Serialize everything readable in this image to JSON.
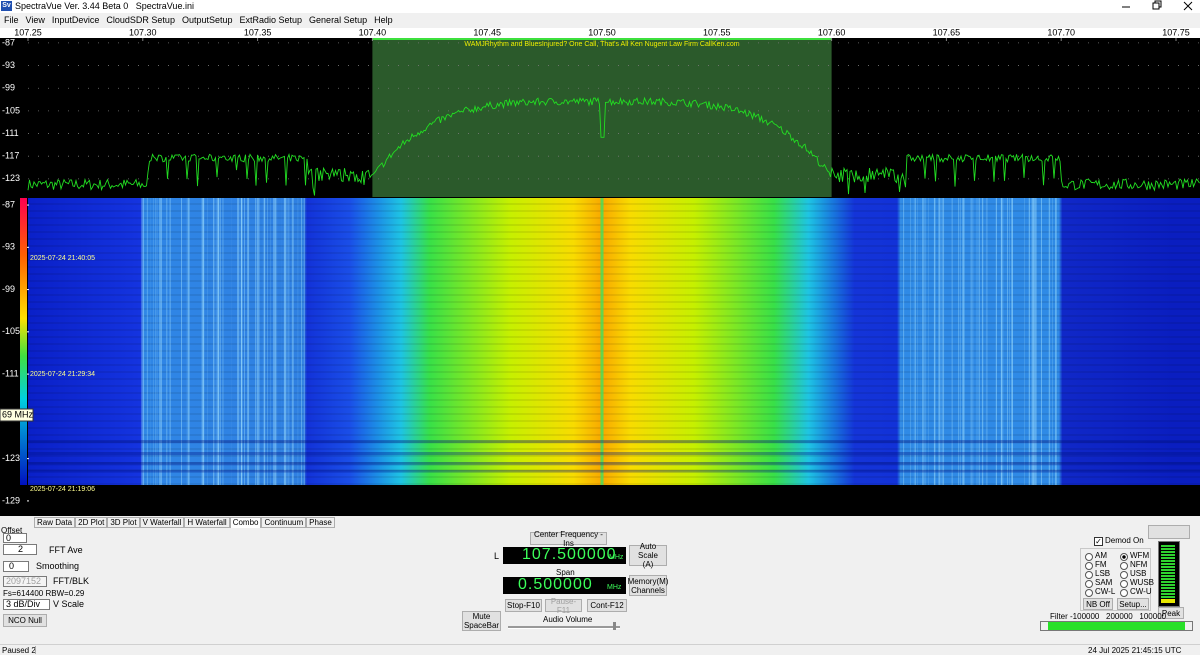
{
  "window": {
    "title": "SpectraVue Ver. 3.44 Beta 0   SpectraVue.ini",
    "icon": "Sv"
  },
  "menu": [
    "File",
    "View",
    "InputDevice",
    "CloudSDR Setup",
    "OutputSetup",
    "ExtRadio Setup",
    "General Setup",
    "Help"
  ],
  "chart_data": [
    {
      "type": "line",
      "color": "#22dd22",
      "xlim": [
        107.25,
        107.75
      ],
      "xticks": [
        107.25,
        {
          "value": 107.3,
          "label": "107.30"
        },
        107.35,
        {
          "value": 107.4,
          "label": "107.40"
        },
        107.45,
        {
          "value": 107.5,
          "label": "107.50"
        },
        107.55,
        {
          "value": 107.6,
          "label": "107.60"
        },
        107.65,
        {
          "value": 107.7,
          "label": "107.70"
        },
        107.75
      ],
      "ylim": [
        -127.8,
        -85.7
      ],
      "yticks": [
        -87,
        -93,
        -99,
        -105,
        -111,
        -117,
        -123
      ],
      "grid": true,
      "highlight": [
        107.4,
        107.6
      ],
      "banner": "WAMJRhythm and BluesInjured? One Call, That's All Ken Nugent Law Firm CallKen.com"
    },
    {
      "type": "heatmap",
      "ylim": [
        -131,
        -86
      ],
      "yticks": [
        -87,
        -93,
        -99,
        -105,
        -111,
        -117,
        -123,
        -129
      ],
      "timestamps": [
        "2025-07-24 21:40:05",
        "2025-07-24 21:29:34",
        "2025-07-24 21:19:06"
      ],
      "marker": "69 MHz"
    }
  ],
  "tabs": {
    "items": [
      "Raw Data",
      "2D Plot",
      "3D Plot",
      "V Waterfall",
      "H Waterfall",
      "Combo",
      "Continuum",
      "Phase"
    ],
    "active": 5
  },
  "controls": {
    "offset_label": "Offset",
    "offset": "0",
    "fft_ave": "2",
    "fft_ave_label": "FFT Ave",
    "smoothing": "0",
    "smoothing_label": "Smoothing",
    "fft_blk": "2097152",
    "fft_blk_label": "FFT/BLK",
    "fs_rbw": "Fs=614400 RBW=0.29",
    "vscale": "3 dB/Div",
    "vscale_label": "V Scale",
    "nco_null": "NCO Null",
    "center_freq_btn": "Center Frequency - Ins",
    "lock": "L",
    "frequency": "107.500000",
    "frequency_unit": "MHz",
    "auto_scale": "Auto Scale (A)",
    "span_label": "Span",
    "span": "0.500000",
    "span_unit": "MHz",
    "memory": "Memory(M) Channels",
    "stop": "Stop-F10",
    "pause": "Pause-F11",
    "cont": "Cont-F12",
    "mute": "Mute SpaceBar",
    "audio_volume": "Audio Volume"
  },
  "demod": {
    "label": "Demod On",
    "enabled": true,
    "modes": [
      [
        "AM",
        "WFM"
      ],
      [
        "FM",
        "NFM"
      ],
      [
        "LSB",
        "USB"
      ],
      [
        "SAM",
        "WUSB"
      ],
      [
        "CW-L",
        "CW-U"
      ]
    ],
    "selected": [
      0,
      1
    ],
    "nb": "NB Off",
    "setup": "Setup...",
    "peak": "Peak",
    "filter": "Filter -100000   200000   100000"
  },
  "status": {
    "left": "Paused 2",
    "right": "24 Jul 2025 21:45:15 UTC"
  }
}
